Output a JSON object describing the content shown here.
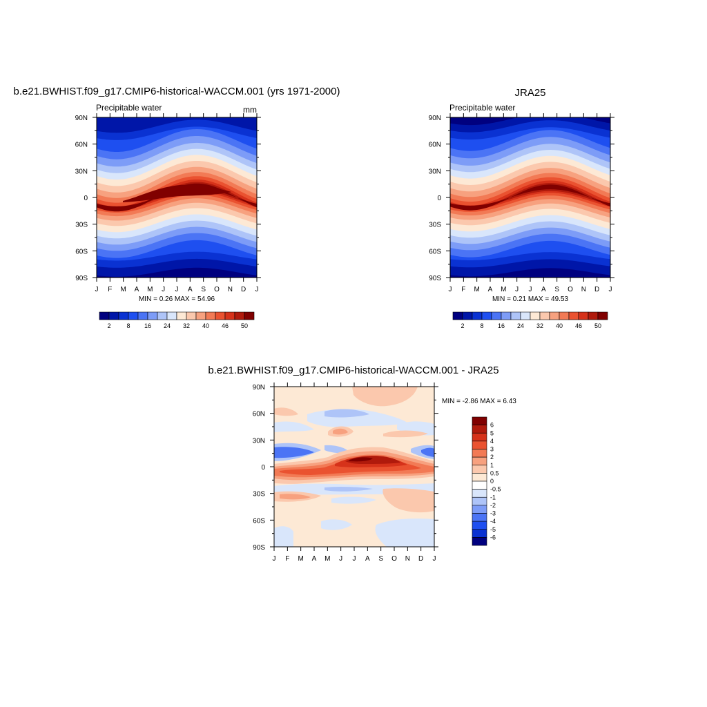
{
  "chart_data": [
    {
      "type": "heatmap",
      "title": "b.e21.BWHIST.f09_g17.CMIP6-historical-WACCM.001 (yrs 1971-2000)",
      "subtitle_left": "Precipitable water",
      "subtitle_right": "mm",
      "x_ticks": [
        "J",
        "F",
        "M",
        "A",
        "M",
        "J",
        "J",
        "A",
        "S",
        "O",
        "N",
        "D",
        "J"
      ],
      "y_ticks": [
        "90N",
        "60N",
        "30N",
        "0",
        "30S",
        "60S",
        "90S"
      ],
      "stats": "MIN =   0.26 MAX =  54.96",
      "colorbar_labels": [
        "2",
        "8",
        "16",
        "24",
        "32",
        "40",
        "46",
        "50"
      ],
      "colors": [
        "#00007f",
        "#0016a8",
        "#0a32d2",
        "#1e4ff0",
        "#4b74f5",
        "#7d9cf7",
        "#aec4f8",
        "#d9e6fb",
        "#fde9d5",
        "#fbc8ad",
        "#f7a17f",
        "#f27a55",
        "#ea5230",
        "#d6321a",
        "#b01a0c",
        "#800000"
      ]
    },
    {
      "type": "heatmap",
      "title": "JRA25",
      "subtitle_left": "Precipitable water",
      "x_ticks": [
        "J",
        "F",
        "M",
        "A",
        "M",
        "J",
        "J",
        "A",
        "S",
        "O",
        "N",
        "D",
        "J"
      ],
      "y_ticks": [
        "90N",
        "60N",
        "30N",
        "0",
        "30S",
        "60S",
        "90S"
      ],
      "stats": "MIN =   0.21 MAX =  49.53",
      "colorbar_labels": [
        "2",
        "8",
        "16",
        "24",
        "32",
        "40",
        "46",
        "50"
      ]
    },
    {
      "type": "heatmap",
      "title": "b.e21.BWHIST.f09_g17.CMIP6-historical-WACCM.001 - JRA25",
      "x_ticks": [
        "J",
        "F",
        "M",
        "A",
        "M",
        "J",
        "J",
        "A",
        "S",
        "O",
        "N",
        "D",
        "J"
      ],
      "y_ticks": [
        "90N",
        "60N",
        "30N",
        "0",
        "30S",
        "60S",
        "90S"
      ],
      "stats": "MIN =  -2.86 MAX =   6.43",
      "colorbar_labels": [
        "6",
        "5",
        "4",
        "3",
        "2",
        "1",
        "0.5",
        "0",
        "-0.5",
        "-1",
        "-2",
        "-3",
        "-4",
        "-5",
        "-6"
      ],
      "colors": [
        "#800000",
        "#b01a0c",
        "#d6321a",
        "#ea5230",
        "#f27a55",
        "#f7a17f",
        "#fbc8ad",
        "#fde9d5",
        "#ffffff",
        "#d9e6fb",
        "#aec4f8",
        "#7d9cf7",
        "#4b74f5",
        "#1e4ff0",
        "#0a32d2",
        "#00007f"
      ]
    }
  ]
}
